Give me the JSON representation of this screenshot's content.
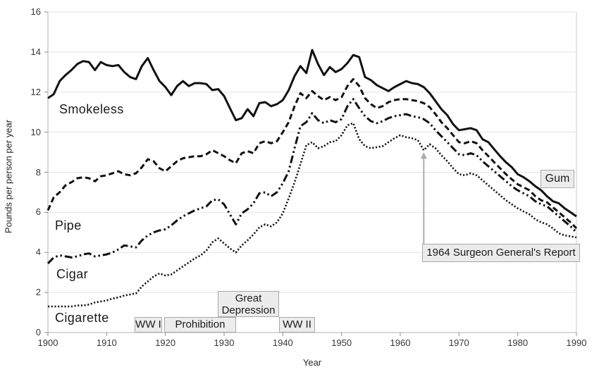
{
  "chart_data": {
    "type": "line",
    "title": "",
    "xlabel": "Year",
    "ylabel": "Pounds per person per year",
    "xlim": [
      1900,
      1990
    ],
    "ylim": [
      0,
      16
    ],
    "x_ticks": [
      1900,
      1910,
      1920,
      1930,
      1940,
      1950,
      1960,
      1970,
      1980,
      1990
    ],
    "y_ticks": [
      0,
      2,
      4,
      6,
      8,
      10,
      12,
      14,
      16
    ],
    "grid": "horizontal-light-gray",
    "legend_position": "inline-line-labels",
    "line_color": "#111111",
    "x": [
      1900,
      1901,
      1902,
      1903,
      1904,
      1905,
      1906,
      1907,
      1908,
      1909,
      1910,
      1911,
      1912,
      1913,
      1914,
      1915,
      1916,
      1917,
      1918,
      1919,
      1920,
      1921,
      1922,
      1923,
      1924,
      1925,
      1926,
      1927,
      1928,
      1929,
      1930,
      1931,
      1932,
      1933,
      1934,
      1935,
      1936,
      1937,
      1938,
      1939,
      1940,
      1941,
      1942,
      1943,
      1944,
      1945,
      1946,
      1947,
      1948,
      1949,
      1950,
      1951,
      1952,
      1953,
      1954,
      1955,
      1956,
      1957,
      1958,
      1959,
      1960,
      1961,
      1962,
      1963,
      1964,
      1965,
      1966,
      1967,
      1968,
      1969,
      1970,
      1971,
      1972,
      1973,
      1974,
      1975,
      1976,
      1977,
      1978,
      1979,
      1980,
      1981,
      1982,
      1983,
      1984,
      1985,
      1986,
      1987,
      1988,
      1989,
      1990
    ],
    "series": [
      {
        "name": "Smokeless",
        "line_style": "solid",
        "values": [
          11.7,
          11.9,
          12.55,
          12.85,
          13.1,
          13.4,
          13.55,
          13.5,
          13.1,
          13.5,
          13.35,
          13.3,
          13.35,
          13.0,
          12.75,
          12.65,
          13.3,
          13.7,
          13.1,
          12.55,
          12.25,
          11.85,
          12.3,
          12.55,
          12.3,
          12.45,
          12.45,
          12.4,
          12.1,
          12.15,
          11.8,
          11.2,
          10.6,
          10.7,
          11.15,
          10.8,
          11.45,
          11.5,
          11.3,
          11.4,
          11.6,
          12.1,
          12.8,
          13.3,
          12.95,
          14.1,
          13.4,
          12.85,
          13.25,
          13.0,
          13.15,
          13.45,
          13.85,
          13.75,
          12.75,
          12.6,
          12.35,
          12.2,
          12.05,
          12.25,
          12.4,
          12.55,
          12.45,
          12.4,
          12.25,
          11.95,
          11.55,
          11.15,
          10.85,
          10.4,
          10.1,
          10.15,
          10.2,
          10.1,
          9.65,
          9.5,
          9.15,
          8.8,
          8.5,
          8.25,
          7.9,
          7.75,
          7.55,
          7.3,
          7.1,
          6.8,
          6.55,
          6.45,
          6.2,
          6.0,
          5.8
        ]
      },
      {
        "name": "Pipe",
        "line_style": "dashed",
        "values": [
          6.1,
          6.75,
          7.0,
          7.35,
          7.5,
          7.7,
          7.75,
          7.7,
          7.55,
          7.8,
          7.85,
          7.95,
          8.05,
          7.9,
          7.85,
          7.95,
          8.25,
          8.65,
          8.55,
          8.2,
          8.05,
          8.3,
          8.55,
          8.7,
          8.75,
          8.8,
          8.8,
          8.9,
          9.1,
          8.95,
          8.8,
          8.6,
          8.45,
          8.95,
          9.05,
          8.95,
          9.45,
          9.55,
          9.45,
          9.55,
          10.0,
          10.5,
          11.3,
          11.95,
          11.7,
          12.05,
          11.8,
          11.6,
          11.75,
          11.6,
          11.75,
          12.3,
          12.65,
          12.3,
          11.7,
          11.4,
          11.2,
          11.3,
          11.5,
          11.6,
          11.65,
          11.65,
          11.6,
          11.55,
          11.45,
          11.25,
          10.9,
          10.5,
          10.2,
          9.85,
          9.5,
          9.45,
          9.55,
          9.45,
          9.1,
          8.8,
          8.5,
          8.2,
          7.9,
          7.65,
          7.4,
          7.25,
          7.1,
          6.8,
          6.6,
          6.5,
          6.25,
          6.0,
          5.75,
          5.5,
          5.2
        ]
      },
      {
        "name": "Cigar",
        "line_style": "dash-dot-dot",
        "values": [
          3.45,
          3.75,
          3.85,
          3.8,
          3.75,
          3.8,
          3.9,
          3.95,
          3.8,
          3.85,
          3.9,
          4.0,
          4.15,
          4.35,
          4.3,
          4.25,
          4.6,
          4.85,
          5.0,
          5.1,
          5.15,
          5.35,
          5.6,
          5.8,
          5.95,
          6.1,
          6.2,
          6.3,
          6.6,
          6.65,
          6.4,
          5.9,
          5.4,
          5.95,
          6.15,
          6.45,
          6.95,
          7.0,
          6.8,
          7.0,
          7.45,
          8.05,
          9.2,
          10.3,
          10.5,
          10.95,
          10.6,
          10.45,
          10.6,
          10.5,
          10.65,
          11.3,
          11.65,
          11.2,
          10.8,
          10.55,
          10.45,
          10.55,
          10.7,
          10.8,
          10.85,
          10.9,
          10.8,
          10.75,
          10.65,
          10.45,
          10.1,
          9.8,
          9.5,
          9.2,
          8.9,
          8.85,
          8.95,
          8.85,
          8.55,
          8.3,
          8.05,
          7.8,
          7.55,
          7.3,
          7.1,
          6.95,
          6.8,
          6.55,
          6.4,
          6.3,
          6.05,
          5.8,
          5.55,
          5.3,
          5.0
        ]
      },
      {
        "name": "Cigarette",
        "line_style": "dotted",
        "values": [
          1.3,
          1.3,
          1.3,
          1.3,
          1.3,
          1.35,
          1.35,
          1.4,
          1.5,
          1.55,
          1.6,
          1.7,
          1.75,
          1.85,
          1.9,
          1.95,
          2.3,
          2.55,
          2.8,
          2.95,
          2.85,
          2.9,
          3.1,
          3.3,
          3.5,
          3.7,
          3.85,
          4.1,
          4.5,
          4.7,
          4.45,
          4.2,
          4.0,
          4.35,
          4.6,
          4.9,
          5.25,
          5.4,
          5.3,
          5.5,
          5.95,
          6.7,
          7.5,
          8.4,
          9.35,
          9.5,
          9.2,
          9.3,
          9.5,
          9.55,
          9.85,
          10.35,
          10.45,
          9.65,
          9.3,
          9.2,
          9.25,
          9.3,
          9.5,
          9.7,
          9.85,
          9.75,
          9.7,
          9.6,
          9.1,
          9.4,
          9.2,
          8.85,
          8.55,
          8.2,
          7.9,
          7.85,
          7.95,
          7.85,
          7.6,
          7.35,
          7.1,
          6.85,
          6.6,
          6.4,
          6.2,
          6.05,
          5.9,
          5.65,
          5.5,
          5.4,
          5.2,
          4.95,
          4.85,
          4.8,
          4.75
        ]
      }
    ],
    "annotations": {
      "event_boxes": [
        {
          "label": "WW I",
          "x_range": [
            1914.8,
            1919.2
          ]
        },
        {
          "label": "Prohibition",
          "x_range": [
            1919.8,
            1932.0
          ]
        },
        {
          "label": "Great Depression",
          "x_range": [
            1929.0,
            1939.2
          ]
        },
        {
          "label": "WW II",
          "x_range": [
            1939.4,
            1945.4
          ]
        }
      ],
      "gum_label": "Gum",
      "report_label": "1964 Surgeon General's Report",
      "report_arrow": {
        "year": 1964,
        "series": "Cigarette"
      }
    }
  }
}
